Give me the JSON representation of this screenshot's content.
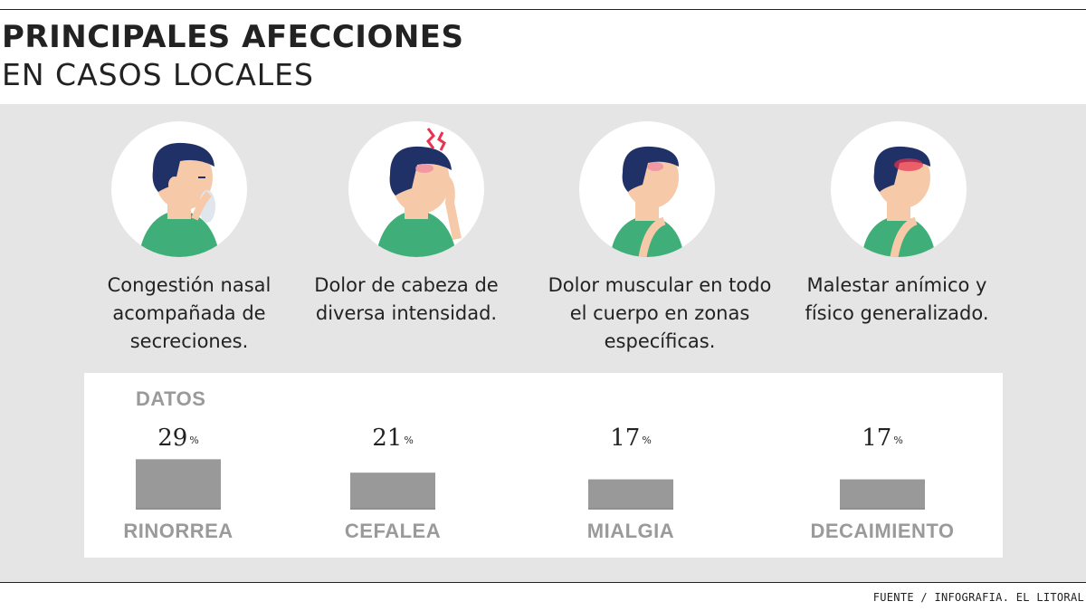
{
  "header": {
    "title": "PRINCIPALES AFECCIONES",
    "subtitle": "EN CASOS LOCALES"
  },
  "columns": [
    {
      "icon": "runny-nose-icon",
      "description": "Congestión nasal acompañada de secreciones."
    },
    {
      "icon": "headache-icon",
      "description": "Dolor de cabeza de diversa intensidad."
    },
    {
      "icon": "muscle-pain-icon",
      "description": "Dolor muscular en todo el cuerpo en zonas específicas."
    },
    {
      "icon": "malaise-icon",
      "description": "Malestar anímico y físico generalizado."
    }
  ],
  "chart_label": "DATOS",
  "chart_data": {
    "type": "bar",
    "categories": [
      "RINORREA",
      "CEFALEA",
      "MIALGIA",
      "DECAIMIENTO"
    ],
    "values": [
      29,
      21,
      17,
      17
    ],
    "value_suffix": "%",
    "bar_color": "#999999",
    "label_color": "#9a9a9a"
  },
  "source": "FUENTE / INFOGRAFIA. EL LITORAL",
  "colors": {
    "panel": "#e5e5e5",
    "skin": "#f6c9a8",
    "hair": "#1f3166",
    "shirt": "#3fae78",
    "pain": "#e8324f"
  }
}
